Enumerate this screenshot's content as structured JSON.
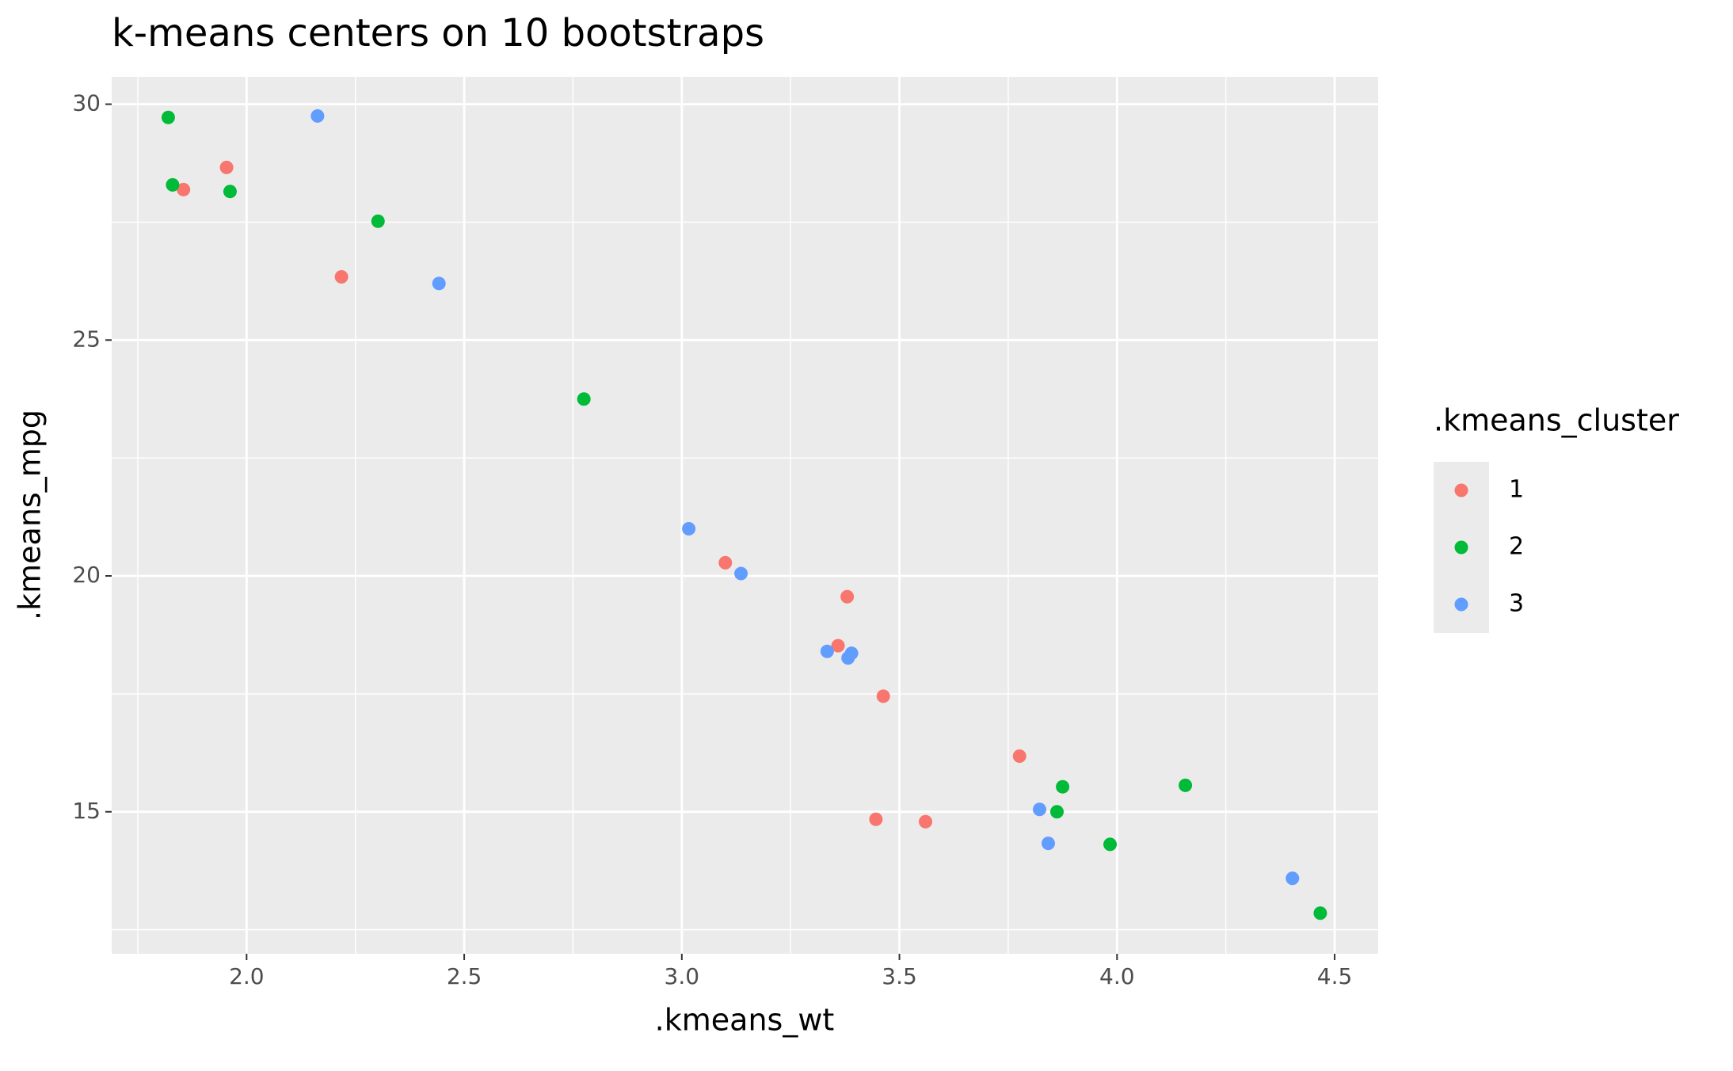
{
  "chart_data": {
    "type": "scatter",
    "title": "k-means centers on 10 bootstraps",
    "x_label": ".kmeans_wt",
    "y_label": ".kmeans_mpg",
    "legend_title": ".kmeans_cluster",
    "legend": "right",
    "grid": true,
    "xlim": [
      1.69,
      4.6
    ],
    "ylim": [
      11.99,
      30.58
    ],
    "xticks": [
      {
        "value": 2,
        "label": "2.0"
      },
      2.5,
      {
        "value": 3,
        "label": "3.0"
      },
      3.5,
      {
        "value": 4,
        "label": "4.0"
      },
      4.5
    ],
    "yticks": [
      15,
      20,
      25,
      30
    ],
    "xminor_ticks": [
      1.75,
      2.25,
      2.75,
      3.25,
      3.75,
      4.25
    ],
    "yminor_ticks": [
      12.5,
      17.5,
      22.5,
      27.5
    ],
    "series": [
      {
        "name": "1",
        "color": "#f8766d",
        "x": [
          1.855,
          1.954,
          2.218,
          3.1,
          3.38,
          3.359,
          3.463,
          3.776,
          3.446,
          3.56
        ],
        "values": [
          28.19,
          28.66,
          26.34,
          20.28,
          19.56,
          18.52,
          17.45,
          16.18,
          14.84,
          14.79
        ]
      },
      {
        "name": "2",
        "color": "#00ba38",
        "x": [
          1.82,
          1.83,
          1.962,
          2.302,
          2.775,
          3.875,
          3.862,
          4.157,
          3.984,
          4.467
        ],
        "values": [
          29.72,
          28.29,
          28.15,
          27.52,
          23.75,
          15.53,
          15.0,
          15.56,
          14.31,
          12.85
        ]
      },
      {
        "name": "3",
        "color": "#619cff",
        "x": [
          2.163,
          2.442,
          3.016,
          3.136,
          3.334,
          3.382,
          3.39,
          3.822,
          3.842,
          4.403
        ],
        "values": [
          29.75,
          26.2,
          21.0,
          20.05,
          18.4,
          18.26,
          18.36,
          15.05,
          14.33,
          13.59
        ]
      }
    ]
  }
}
